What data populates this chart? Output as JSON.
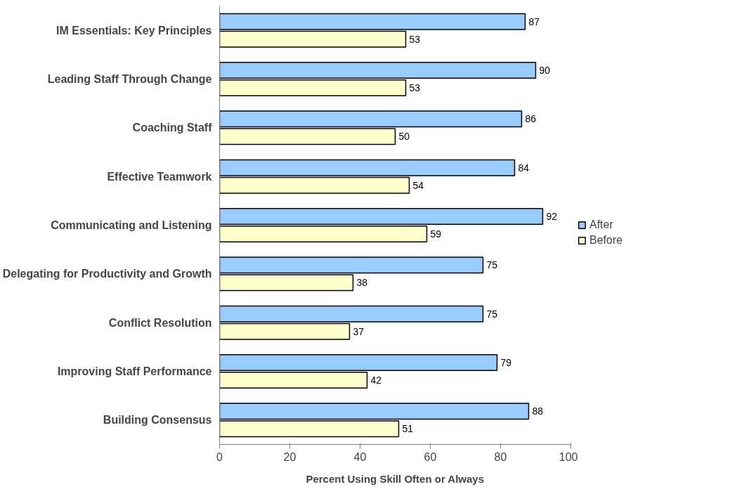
{
  "chart_data": {
    "type": "bar",
    "orientation": "horizontal",
    "xlabel": "Percent Using Skill Often or Always",
    "categories": [
      "IM Essentials: Key Principles",
      "Leading Staff Through Change",
      "Coaching Staff",
      "Effective Teamwork",
      "Communicating and Listening",
      "Delegating for Productivity and Growth",
      "Conflict Resolution",
      "Improving Staff Performance",
      "Building Consensus"
    ],
    "series": [
      {
        "name": "After",
        "color": "#99ccff",
        "values": [
          87,
          90,
          86,
          84,
          92,
          75,
          75,
          79,
          88
        ]
      },
      {
        "name": "Before",
        "color": "#ffffcc",
        "values": [
          53,
          53,
          50,
          54,
          59,
          38,
          37,
          42,
          51
        ]
      }
    ],
    "xlim": [
      0,
      100
    ],
    "xticks": [
      0,
      20,
      40,
      60,
      80,
      100
    ],
    "data_labels": true,
    "grid": false,
    "legend": "right"
  }
}
